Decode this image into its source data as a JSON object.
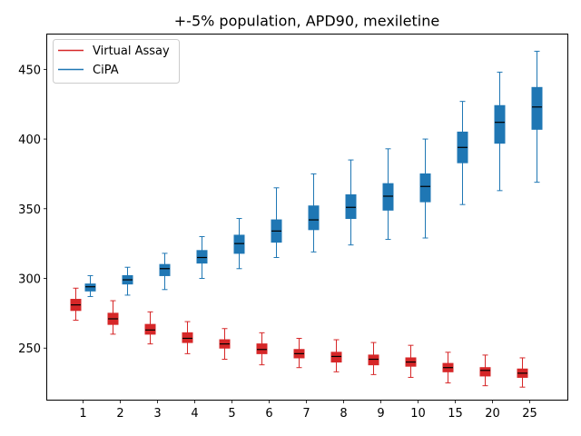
{
  "chart_data": {
    "type": "box",
    "title": "+-5% population, APD90, mexiletine",
    "xlabel": "",
    "ylabel": "",
    "categories": [
      "1",
      "2",
      "3",
      "4",
      "5",
      "6",
      "7",
      "8",
      "9",
      "10",
      "15",
      "20",
      "25"
    ],
    "ylim": [
      213,
      475
    ],
    "yticks": [
      250,
      300,
      350,
      400,
      450
    ],
    "grid": false,
    "legend_position": "top-left",
    "series": [
      {
        "name": "Virtual Assay",
        "color": "#d62728",
        "boxes": [
          {
            "min": 270,
            "q1": 277,
            "median": 281,
            "q3": 285,
            "max": 293
          },
          {
            "min": 260,
            "q1": 267,
            "median": 271,
            "q3": 275,
            "max": 284
          },
          {
            "min": 253,
            "q1": 260,
            "median": 263,
            "q3": 267,
            "max": 276
          },
          {
            "min": 246,
            "q1": 254,
            "median": 257,
            "q3": 261,
            "max": 269
          },
          {
            "min": 242,
            "q1": 250,
            "median": 253,
            "q3": 256,
            "max": 264
          },
          {
            "min": 238,
            "q1": 246,
            "median": 249,
            "q3": 253,
            "max": 261
          },
          {
            "min": 236,
            "q1": 243,
            "median": 246,
            "q3": 249,
            "max": 257
          },
          {
            "min": 233,
            "q1": 240,
            "median": 244,
            "q3": 247,
            "max": 256
          },
          {
            "min": 231,
            "q1": 238,
            "median": 242,
            "q3": 245,
            "max": 254
          },
          {
            "min": 229,
            "q1": 237,
            "median": 240,
            "q3": 243,
            "max": 252
          },
          {
            "min": 225,
            "q1": 233,
            "median": 236,
            "q3": 239,
            "max": 247
          },
          {
            "min": 223,
            "q1": 230,
            "median": 234,
            "q3": 236,
            "max": 245
          },
          {
            "min": 222,
            "q1": 229,
            "median": 232,
            "q3": 235,
            "max": 243
          }
        ]
      },
      {
        "name": "CiPA",
        "color": "#1f77b4",
        "boxes": [
          {
            "min": 287,
            "q1": 291,
            "median": 294,
            "q3": 296,
            "max": 302
          },
          {
            "min": 288,
            "q1": 296,
            "median": 299,
            "q3": 302,
            "max": 308
          },
          {
            "min": 292,
            "q1": 302,
            "median": 307,
            "q3": 310,
            "max": 318
          },
          {
            "min": 300,
            "q1": 311,
            "median": 315,
            "q3": 320,
            "max": 330
          },
          {
            "min": 307,
            "q1": 318,
            "median": 325,
            "q3": 331,
            "max": 343
          },
          {
            "min": 315,
            "q1": 326,
            "median": 334,
            "q3": 342,
            "max": 365
          },
          {
            "min": 319,
            "q1": 335,
            "median": 342,
            "q3": 352,
            "max": 375
          },
          {
            "min": 324,
            "q1": 343,
            "median": 351,
            "q3": 360,
            "max": 385
          },
          {
            "min": 328,
            "q1": 349,
            "median": 359,
            "q3": 368,
            "max": 393
          },
          {
            "min": 329,
            "q1": 355,
            "median": 366,
            "q3": 375,
            "max": 400
          },
          {
            "min": 353,
            "q1": 383,
            "median": 394,
            "q3": 405,
            "max": 427
          },
          {
            "min": 363,
            "q1": 397,
            "median": 412,
            "q3": 424,
            "max": 448
          },
          {
            "min": 369,
            "q1": 407,
            "median": 423,
            "q3": 437,
            "max": 463
          }
        ]
      }
    ]
  }
}
